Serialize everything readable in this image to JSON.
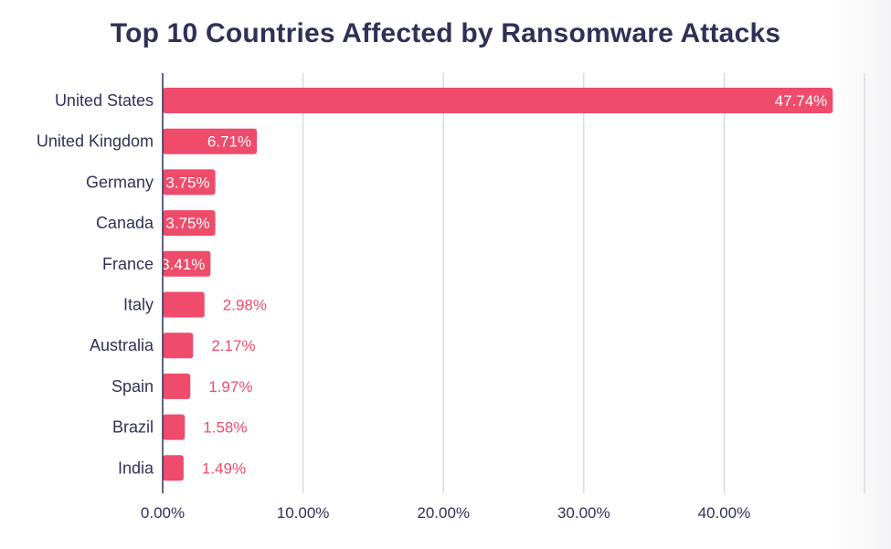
{
  "chart_data": {
    "type": "bar",
    "orientation": "horizontal",
    "title": "Top 10 Countries Affected by Ransomware Attacks",
    "categories": [
      "United States",
      "United Kingdom",
      "Germany",
      "Canada",
      "France",
      "Italy",
      "Australia",
      "Spain",
      "Brazil",
      "India"
    ],
    "values": [
      47.74,
      6.71,
      3.75,
      3.75,
      3.41,
      2.98,
      2.17,
      1.97,
      1.58,
      1.49
    ],
    "value_labels": [
      "47.74%",
      "6.71%",
      "3.75%",
      "3.75%",
      "3.41%",
      "2.98%",
      "2.17%",
      "1.97%",
      "1.58%",
      "1.49%"
    ],
    "x_ticks": [
      0,
      10,
      20,
      30,
      40,
      50
    ],
    "x_tick_labels": [
      "0.00%",
      "10.00%",
      "20.00%",
      "30.00%",
      "40.00%",
      ""
    ],
    "xlim": [
      0,
      50
    ],
    "xlabel": "",
    "ylabel": "",
    "grid": "vertical",
    "legend": "none",
    "colors": {
      "bar": "#ef4b6b",
      "label_outside": "#ef4b6b",
      "label_inside": "#ffffff",
      "text": "#2f3157",
      "grid": "#d4d4d8",
      "axis": "#2f3157"
    }
  }
}
